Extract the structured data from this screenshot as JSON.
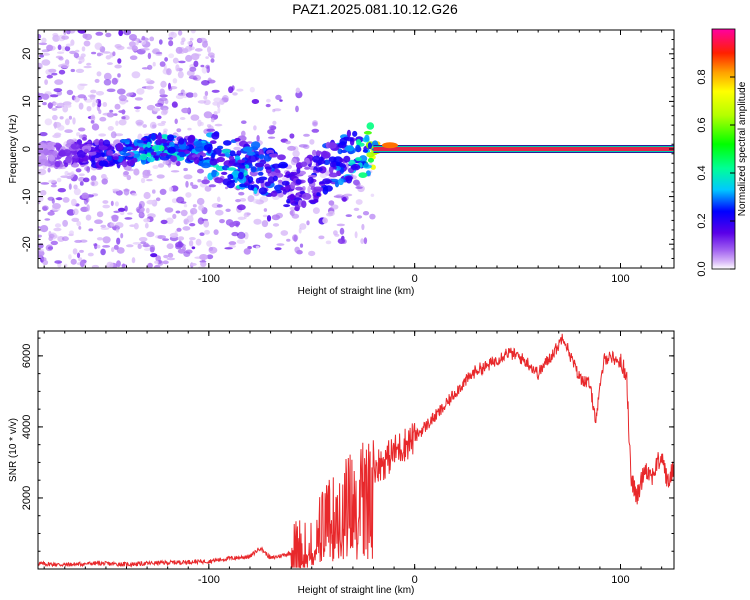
{
  "title": "PAZ1.2025.081.10.12.G26",
  "colors": {
    "snr_line": "#e8282b",
    "carrier": "#e0244a",
    "frame": "#000000"
  },
  "chart_data": [
    {
      "type": "heatmap",
      "title": "PAZ1.2025.081.10.12.G26",
      "xlabel": "Height of straight line (km)",
      "ylabel": "Frequency (Hz)",
      "xlim": [
        -183,
        126
      ],
      "ylim": [
        -25,
        25
      ],
      "x_ticks": [
        -100,
        0,
        100
      ],
      "x_tick_labels": [
        "-100",
        "0",
        "100"
      ],
      "y_ticks": [
        -20,
        -10,
        0,
        10,
        20
      ],
      "y_tick_labels": [
        "-20",
        "-10",
        "0",
        "10",
        "20"
      ],
      "colorbar": {
        "label": "Normalized spectral amplitude",
        "range": [
          0,
          1
        ],
        "ticks": [
          0.0,
          0.2,
          0.4,
          0.6,
          0.8
        ],
        "tick_labels": [
          "0.0",
          "0.2",
          "0.4",
          "0.6",
          "0.8"
        ],
        "colormap": "rainbow"
      },
      "ridge": {
        "description_values": [
          {
            "x": -183,
            "y": -1.2,
            "amp": 0.05
          },
          {
            "x": -160,
            "y": -1.0,
            "amp": 0.15
          },
          {
            "x": -140,
            "y": -0.8,
            "amp": 0.25
          },
          {
            "x": -125,
            "y": 0.5,
            "amp": 0.35
          },
          {
            "x": -110,
            "y": 0.0,
            "amp": 0.25
          },
          {
            "x": -95,
            "y": -2.0,
            "amp": 0.3
          },
          {
            "x": -85,
            "y": -3.0,
            "amp": 0.3
          },
          {
            "x": -75,
            "y": -4.0,
            "amp": 0.25
          },
          {
            "x": -65,
            "y": -6.5,
            "amp": 0.2
          },
          {
            "x": -55,
            "y": -8.0,
            "amp": 0.15
          },
          {
            "x": -45,
            "y": -5.0,
            "amp": 0.2
          },
          {
            "x": -35,
            "y": -2.0,
            "amp": 0.25
          },
          {
            "x": -25,
            "y": -0.5,
            "amp": 0.35
          },
          {
            "x": -15,
            "y": 0.5,
            "amp": 0.85
          },
          {
            "x": 0,
            "y": 0.0,
            "amp": 0.9
          },
          {
            "x": 126,
            "y": 0.0,
            "amp": 0.9
          }
        ]
      }
    },
    {
      "type": "line",
      "xlabel": "Height of straight line (km)",
      "ylabel": "SNR (10 * v/v)",
      "xlim": [
        -183,
        126
      ],
      "ylim": [
        0,
        6700
      ],
      "x_ticks": [
        -100,
        0,
        100
      ],
      "x_tick_labels": [
        "-100",
        "0",
        "100"
      ],
      "y_ticks": [
        2000,
        4000,
        6000
      ],
      "y_tick_labels": [
        "2000",
        "4000",
        "6000"
      ],
      "series": [
        {
          "x": [
            -183,
            -170,
            -155,
            -140,
            -125,
            -110,
            -100,
            -90,
            -80,
            -75,
            -70,
            -60,
            -50,
            -45,
            -40,
            -35,
            -30,
            -25,
            -20,
            -15,
            -10,
            -5,
            0,
            5,
            10,
            15,
            20,
            25,
            30,
            35,
            40,
            45,
            50,
            55,
            60,
            65,
            70,
            72,
            75,
            80,
            85,
            88,
            92,
            95,
            100,
            103,
            105,
            108,
            112,
            115,
            120,
            123,
            126
          ],
          "y": [
            150,
            120,
            160,
            130,
            170,
            200,
            220,
            300,
            350,
            600,
            300,
            450,
            800,
            1300,
            1800,
            2200,
            2500,
            2700,
            2900,
            3000,
            3300,
            3500,
            3700,
            4000,
            4300,
            4600,
            5000,
            5300,
            5600,
            5700,
            5900,
            6100,
            6000,
            5800,
            5500,
            5900,
            6300,
            6600,
            6100,
            5400,
            5200,
            4200,
            5900,
            6000,
            5800,
            5500,
            2600,
            2000,
            2900,
            2600,
            3200,
            2400,
            2900
          ]
        }
      ]
    }
  ]
}
